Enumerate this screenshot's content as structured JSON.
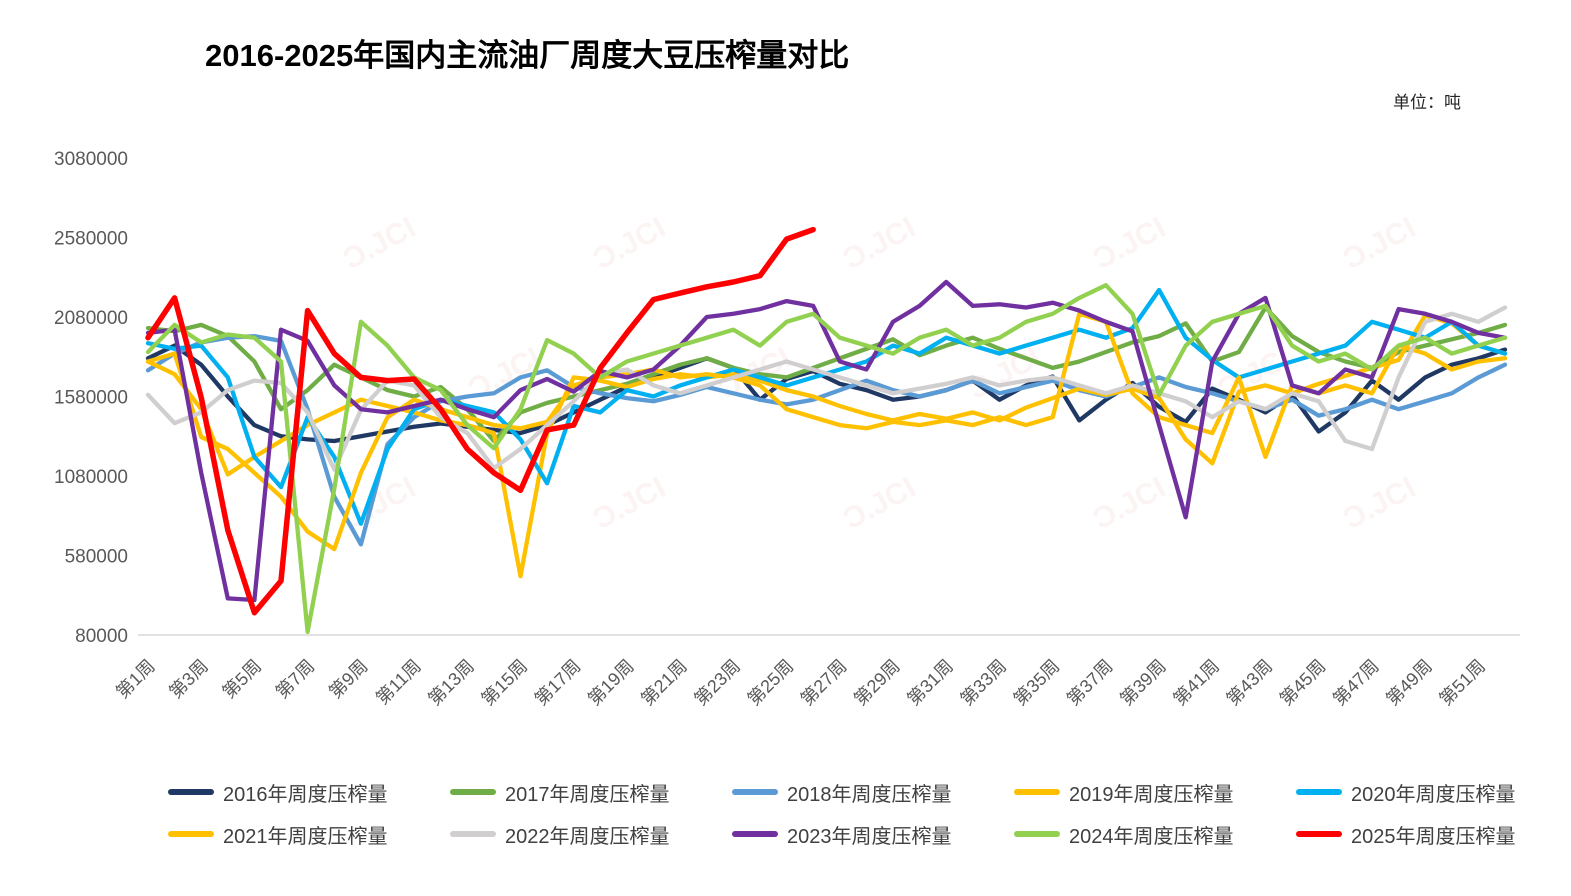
{
  "page": {
    "title": "2016-2025年国内主流油厂周度大豆压榨量对比",
    "unit_label": "单位：吨",
    "watermark_text": "Ɔ.JCI"
  },
  "chart_data": {
    "type": "line",
    "title": "2016-2025年国内主流油厂周度大豆压榨量对比",
    "unit": "吨",
    "grid": false,
    "legend_position": "bottom",
    "x_axis": {
      "weeks_total": 52,
      "tick_labels": [
        "第1周",
        "第3周",
        "第5周",
        "第7周",
        "第9周",
        "第11周",
        "第13周",
        "第15周",
        "第17周",
        "第19周",
        "第21周",
        "第23周",
        "第25周",
        "第27周",
        "第29周",
        "第31周",
        "第33周",
        "第35周",
        "第37周",
        "第39周",
        "第41周",
        "第43周",
        "第45周",
        "第47周",
        "第49周",
        "第51周"
      ]
    },
    "y_axis": {
      "min": 80000,
      "max": 3080000,
      "ticks": [
        3080000,
        2580000,
        2080000,
        1580000,
        1080000,
        580000,
        80000
      ]
    },
    "series": [
      {
        "name": "2016年周度压榨量",
        "color": "#1F3864",
        "values": [
          1820000,
          1900000,
          1780000,
          1580000,
          1400000,
          1330000,
          1310000,
          1300000,
          1330000,
          1360000,
          1390000,
          1410000,
          1390000,
          1370000,
          1350000,
          1400000,
          1480000,
          1560000,
          1640000,
          1700000,
          1760000,
          1820000,
          1760000,
          1560000,
          1690000,
          1740000,
          1660000,
          1620000,
          1560000,
          1580000,
          1620000,
          1680000,
          1560000,
          1650000,
          1705000,
          1430000,
          1560000,
          1665000,
          1515000,
          1420000,
          1630000,
          1560000,
          1480000,
          1590000,
          1360000,
          1480000,
          1680000,
          1560000,
          1700000,
          1780000,
          1820000,
          1875000
        ]
      },
      {
        "name": "2017年周度压榨量",
        "color": "#70AD47",
        "values": [
          2010000,
          1990000,
          2030000,
          1960000,
          1800000,
          1500000,
          1620000,
          1780000,
          1700000,
          1620000,
          1580000,
          1640000,
          1500000,
          1300000,
          1480000,
          1540000,
          1580000,
          1620000,
          1660000,
          1720000,
          1780000,
          1820000,
          1760000,
          1720000,
          1700000,
          1760000,
          1820000,
          1880000,
          1940000,
          1840000,
          1900000,
          1950000,
          1880000,
          1820000,
          1760000,
          1800000,
          1860000,
          1920000,
          1960000,
          2040000,
          1800000,
          1860000,
          2140000,
          1960000,
          1860000,
          1800000,
          1760000,
          1860000,
          1900000,
          1940000,
          1980000,
          2030000
        ]
      },
      {
        "name": "2018年周度压榨量",
        "color": "#5B9BD5",
        "values": [
          1745000,
          1850000,
          1920000,
          1950000,
          1960000,
          1930000,
          1500000,
          950000,
          650000,
          1280000,
          1450000,
          1550000,
          1580000,
          1600000,
          1700000,
          1745000,
          1640000,
          1600000,
          1570000,
          1550000,
          1590000,
          1640000,
          1600000,
          1560000,
          1530000,
          1560000,
          1620000,
          1680000,
          1620000,
          1580000,
          1620000,
          1680000,
          1600000,
          1640000,
          1680000,
          1620000,
          1580000,
          1640000,
          1700000,
          1640000,
          1600000,
          1550000,
          1500000,
          1560000,
          1460000,
          1500000,
          1560000,
          1500000,
          1550000,
          1600000,
          1700000,
          1780000
        ]
      },
      {
        "name": "2019年周度压榨量",
        "color": "#FFC000",
        "values": [
          1800000,
          1720000,
          1500000,
          1090000,
          1200000,
          1300000,
          1400000,
          1480000,
          1560000,
          1520000,
          1480000,
          1430000,
          1400000,
          1350000,
          450000,
          1350000,
          1700000,
          1680000,
          1640000,
          1690000,
          1720000,
          1700000,
          1720000,
          1680000,
          1620000,
          1580000,
          1520000,
          1470000,
          1430000,
          1470000,
          1440000,
          1480000,
          1430000,
          1510000,
          1570000,
          1630000,
          1590000,
          1630000,
          1570000,
          1310000,
          1160000,
          1610000,
          1650000,
          1600000,
          1660000,
          1710000,
          1760000,
          1810000,
          2090000,
          2040000,
          1900000,
          1850000
        ]
      },
      {
        "name": "2020年周度压榨量",
        "color": "#00B0F0",
        "values": [
          1915000,
          1880000,
          1900000,
          1700000,
          1200000,
          1010000,
          1450000,
          1200000,
          780000,
          1250000,
          1500000,
          1560000,
          1520000,
          1480000,
          1310000,
          1035000,
          1520000,
          1480000,
          1620000,
          1580000,
          1650000,
          1700000,
          1750000,
          1700000,
          1650000,
          1700000,
          1750000,
          1800000,
          1900000,
          1850000,
          1950000,
          1900000,
          1850000,
          1900000,
          1950000,
          2000000,
          1950000,
          2010000,
          2250000,
          1950000,
          1810000,
          1700000,
          1750000,
          1800000,
          1850000,
          1900000,
          2050000,
          2000000,
          1950000,
          2050000,
          1900000,
          1850000
        ]
      },
      {
        "name": "2021年周度压榨量",
        "color": "#FFC000",
        "values": [
          1800000,
          1850000,
          1325000,
          1250000,
          1100000,
          950000,
          730000,
          620000,
          1100000,
          1450000,
          1560000,
          1500000,
          1450000,
          1400000,
          1380000,
          1420000,
          1650000,
          1700000,
          1720000,
          1750000,
          1700000,
          1720000,
          1700000,
          1650000,
          1500000,
          1450000,
          1400000,
          1380000,
          1420000,
          1400000,
          1430000,
          1400000,
          1450000,
          1400000,
          1450000,
          2100000,
          2050000,
          1600000,
          1450000,
          1400000,
          1350000,
          1700000,
          1200000,
          1650000,
          1600000,
          1650000,
          1600000,
          1900000,
          1850000,
          1750000,
          1800000,
          1820000
        ]
      },
      {
        "name": "2022年周度压榨量",
        "color": "#D0CECE",
        "values": [
          1590000,
          1413000,
          1480000,
          1620000,
          1680000,
          1665000,
          1480000,
          1120000,
          1495000,
          1680000,
          1650000,
          1450000,
          1350000,
          1130000,
          1250000,
          1400000,
          1550000,
          1720000,
          1750000,
          1650000,
          1600000,
          1650000,
          1700000,
          1750000,
          1800000,
          1750000,
          1700000,
          1650000,
          1600000,
          1630000,
          1660000,
          1700000,
          1650000,
          1680000,
          1700000,
          1650000,
          1600000,
          1650000,
          1600000,
          1550000,
          1450000,
          1550000,
          1500000,
          1600000,
          1550000,
          1300000,
          1250000,
          1700000,
          2050000,
          2100000,
          2050000,
          2140000
        ]
      },
      {
        "name": "2023年周度压榨量",
        "color": "#7030A0",
        "values": [
          1980000,
          2000000,
          1100000,
          310000,
          300000,
          2000000,
          1930000,
          1650000,
          1500000,
          1480000,
          1520000,
          1560000,
          1500000,
          1450000,
          1620000,
          1690000,
          1610000,
          1740000,
          1700000,
          1750000,
          1900000,
          2080000,
          2100000,
          2130000,
          2180000,
          2150000,
          1800000,
          1750000,
          2050000,
          2150000,
          2300000,
          2150000,
          2160000,
          2140000,
          2170000,
          2120000,
          2050000,
          1990000,
          1400000,
          820000,
          1800000,
          2100000,
          2200000,
          1650000,
          1600000,
          1750000,
          1700000,
          2130000,
          2100000,
          2050000,
          1980000,
          1950000
        ]
      },
      {
        "name": "2024年周度压榨量",
        "color": "#92D050",
        "values": [
          1860000,
          2030000,
          1920000,
          1970000,
          1950000,
          1800000,
          100000,
          1000000,
          2050000,
          1900000,
          1700000,
          1620000,
          1400000,
          1255000,
          1500000,
          1935000,
          1850000,
          1700000,
          1800000,
          1850000,
          1900000,
          1950000,
          2000000,
          1900000,
          2050000,
          2100000,
          1950000,
          1900000,
          1850000,
          1950000,
          2000000,
          1900000,
          1950000,
          2050000,
          2100000,
          2200000,
          2280000,
          2100000,
          1590000,
          1900000,
          2050000,
          2100000,
          2150000,
          1900000,
          1800000,
          1850000,
          1750000,
          1900000,
          1950000,
          1850000,
          1900000,
          1950000
        ]
      },
      {
        "name": "2025年周度压榨量",
        "color": "#FF0000",
        "values": [
          1950000,
          2200000,
          1575000,
          740000,
          220000,
          420000,
          2120000,
          1850000,
          1700000,
          1680000,
          1690000,
          1500000,
          1250000,
          1100000,
          990000,
          1370000,
          1400000,
          1760000,
          1980000,
          2190000,
          2230000,
          2270000,
          2300000,
          2340000,
          2570000,
          2630000
        ]
      }
    ]
  }
}
